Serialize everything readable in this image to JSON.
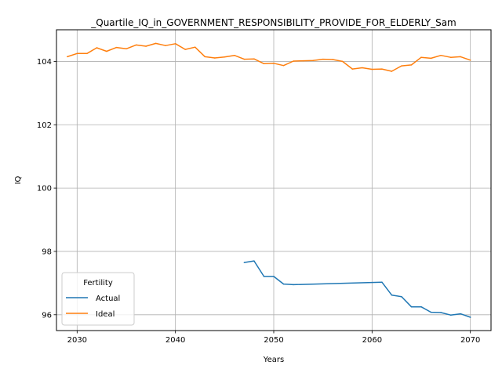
{
  "chart_data": {
    "type": "line",
    "title": "_Quartile_IQ_in_GOVERNMENT_RESPONSIBILITY_PROVIDE_FOR_ELDERLY_Sam",
    "xlabel": "Years",
    "ylabel": "IQ",
    "xlim": [
      2027.9,
      2072.1
    ],
    "ylim": [
      95.5,
      105.0
    ],
    "xticks": [
      2030,
      2040,
      2050,
      2060,
      2070
    ],
    "yticks": [
      96,
      98,
      100,
      102,
      104
    ],
    "xtick_labels": [
      "2030",
      "2040",
      "2050",
      "2060",
      "2070"
    ],
    "ytick_labels": [
      "96",
      "98",
      "100",
      "102",
      "104"
    ],
    "grid": true,
    "legend": {
      "title": "Fertility",
      "placement": "lower-left",
      "entries": [
        "Actual",
        "Ideal"
      ]
    },
    "series": [
      {
        "name": "Actual",
        "color": "#1f77b4",
        "x": [
          2047,
          2048,
          2049,
          2050,
          2051,
          2052,
          2061,
          2062,
          2063,
          2064,
          2065,
          2066,
          2067,
          2068,
          2069,
          2070
        ],
        "values": [
          97.65,
          97.7,
          97.21,
          97.21,
          96.97,
          96.95,
          97.03,
          96.62,
          96.57,
          96.25,
          96.25,
          96.08,
          96.07,
          95.99,
          96.03,
          95.92
        ]
      },
      {
        "name": "Ideal",
        "color": "#ff7f0e",
        "x": [
          2029,
          2030,
          2031,
          2032,
          2033,
          2034,
          2035,
          2036,
          2037,
          2038,
          2039,
          2040,
          2041,
          2042,
          2043,
          2044,
          2045,
          2046,
          2047,
          2048,
          2049,
          2050,
          2051,
          2052,
          2053,
          2054,
          2055,
          2056,
          2057,
          2058,
          2059,
          2060,
          2061,
          2062,
          2063,
          2064,
          2065,
          2066,
          2067,
          2068,
          2069,
          2070
        ],
        "values": [
          104.15,
          104.25,
          104.25,
          104.43,
          104.32,
          104.44,
          104.4,
          104.52,
          104.48,
          104.57,
          104.5,
          104.56,
          104.38,
          104.45,
          104.15,
          104.11,
          104.14,
          104.19,
          104.07,
          104.08,
          103.93,
          103.94,
          103.87,
          104.01,
          104.02,
          104.03,
          104.07,
          104.06,
          104.0,
          103.76,
          103.8,
          103.75,
          103.76,
          103.69,
          103.86,
          103.89,
          104.13,
          104.1,
          104.19,
          104.13,
          104.15,
          104.04
        ]
      }
    ]
  }
}
